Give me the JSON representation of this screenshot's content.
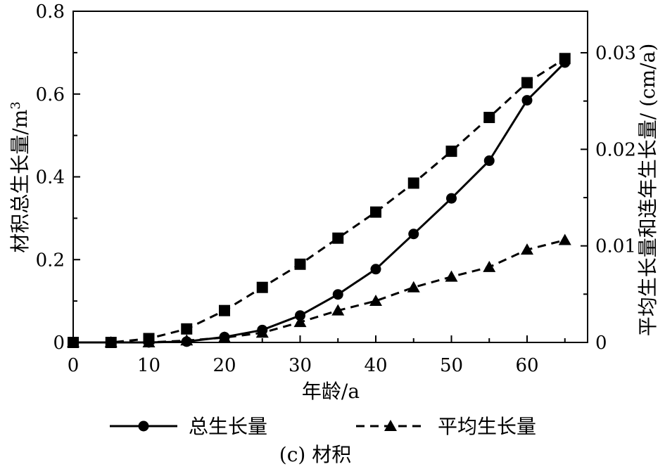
{
  "chart_data": {
    "type": "line",
    "x": [
      0,
      5,
      10,
      15,
      20,
      25,
      30,
      35,
      40,
      45,
      50,
      55,
      60,
      65
    ],
    "xlabel": "年龄/a",
    "ylabel": "材积总生长量/m",
    "ylabel_sup": "3",
    "y2label": "平均生长量和连年生长量/ (cm/a)",
    "xlim": [
      0,
      68
    ],
    "ylim": [
      0,
      0.8
    ],
    "y2lim": [
      0,
      0.0343
    ],
    "xticks": [
      "0",
      "10",
      "20",
      "30",
      "40",
      "50",
      "60"
    ],
    "yticks": [
      "0",
      "0.2",
      "0.4",
      "0.6",
      "0.8"
    ],
    "y2ticks": [
      "0",
      "0.01",
      "0.02",
      "0.03"
    ],
    "series": [
      {
        "name": "总生长量",
        "axis": "left",
        "marker": "circle",
        "style": "solid",
        "values": [
          0,
          0,
          0,
          0.002,
          0.013,
          0.03,
          0.065,
          0.116,
          0.177,
          0.262,
          0.348,
          0.439,
          0.585,
          0.676
        ]
      },
      {
        "name": "平均生长量",
        "axis": "right",
        "marker": "triangle",
        "style": "dashed",
        "values": [
          0,
          0,
          0,
          0.0002,
          0.0005,
          0.001,
          0.0021,
          0.0033,
          0.0043,
          0.0057,
          0.0068,
          0.0078,
          0.0096,
          0.0106
        ]
      },
      {
        "name": "",
        "axis": "right",
        "marker": "square",
        "style": "dashed",
        "values": [
          0,
          0,
          0.0004,
          0.0014,
          0.0033,
          0.0057,
          0.0081,
          0.0108,
          0.0135,
          0.0165,
          0.0198,
          0.0233,
          0.0269,
          0.0294
        ]
      }
    ],
    "legend": [
      "总生长量",
      "平均生长量"
    ],
    "legend_position": "bottom",
    "caption": "(c) 材积"
  }
}
